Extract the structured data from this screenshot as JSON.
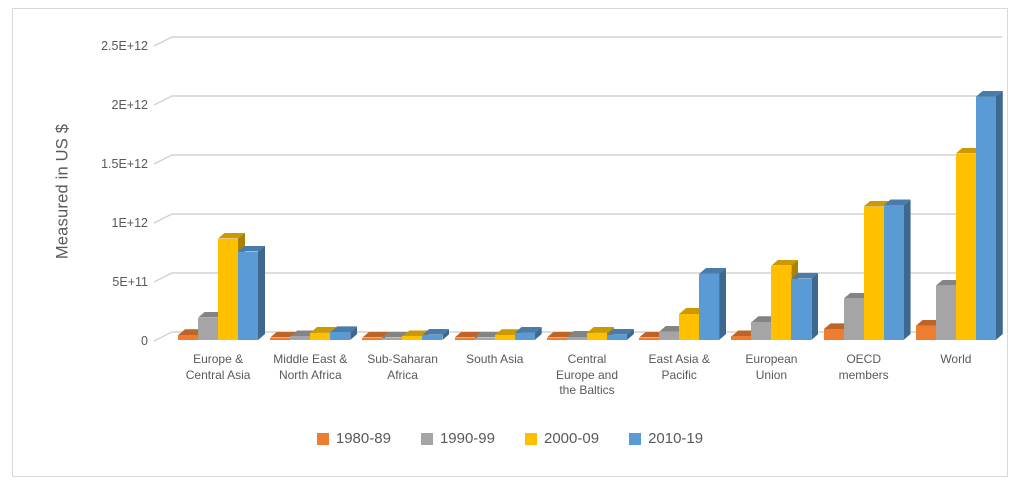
{
  "chart_data": {
    "type": "bar",
    "subtype": "3d-clustered-column",
    "title": "",
    "xlabel": "",
    "ylabel": "Measured in US $",
    "grid": true,
    "legend_position": "bottom",
    "grid_color": "#D2D2D2",
    "ylim": [
      0,
      2500000000000.0
    ],
    "y_ticks": [
      {
        "label": "0",
        "value": 0
      },
      {
        "label": "5E+11",
        "value": 500000000000.0
      },
      {
        "label": "1E+12",
        "value": 1000000000000.0
      },
      {
        "label": "1.5E+12",
        "value": 1500000000000.0
      },
      {
        "label": "2E+12",
        "value": 2000000000000.0
      },
      {
        "label": "2.5E+12",
        "value": 2500000000000.0
      }
    ],
    "categories": [
      "Europe & Central Asia",
      "Middle East & North Africa",
      "Sub-Saharan Africa",
      "South Asia",
      "Central Europe and the Baltics",
      "East Asia & Pacific",
      "European Union",
      "OECD members",
      "World"
    ],
    "series": [
      {
        "name": "1980-89",
        "color": "#ED7D31",
        "values": [
          40000000000.0,
          15000000000.0,
          10000000000.0,
          10000000000.0,
          8000000000.0,
          20000000000.0,
          30000000000.0,
          90000000000.0,
          120000000000.0
        ]
      },
      {
        "name": "1990-99",
        "color": "#A5A5A5",
        "values": [
          190000000000.0,
          30000000000.0,
          15000000000.0,
          15000000000.0,
          25000000000.0,
          70000000000.0,
          150000000000.0,
          350000000000.0,
          460000000000.0
        ]
      },
      {
        "name": "2000-09",
        "color": "#FFC000",
        "values": [
          860000000000.0,
          60000000000.0,
          30000000000.0,
          40000000000.0,
          60000000000.0,
          220000000000.0,
          630000000000.0,
          1130000000000.0,
          1580000000000.0
        ]
      },
      {
        "name": "2010-19",
        "color": "#5B9BD5",
        "values": [
          750000000000.0,
          65000000000.0,
          45000000000.0,
          60000000000.0,
          45000000000.0,
          560000000000.0,
          520000000000.0,
          1140000000000.0,
          2060000000000.0
        ]
      }
    ]
  }
}
